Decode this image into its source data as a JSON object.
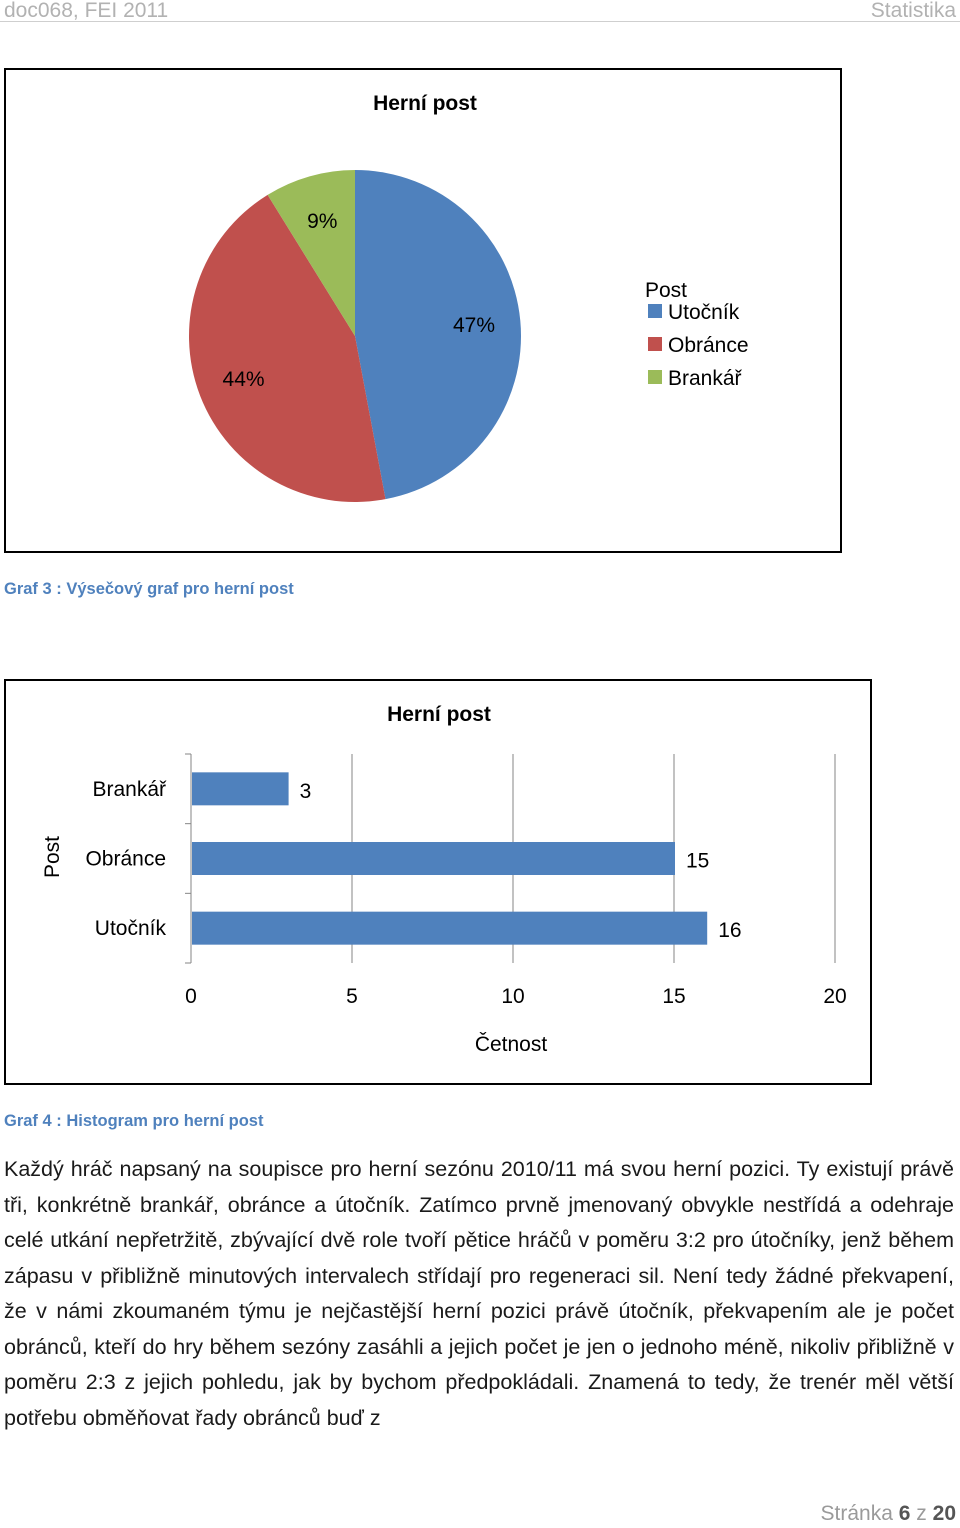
{
  "header": {
    "left": "doc068, FEI 2011",
    "right": "Statistika"
  },
  "chart_data": [
    {
      "type": "pie",
      "title": "Herní post",
      "legend_title": "Post",
      "legend_position": "right",
      "categories": [
        "Utočník",
        "Obránce",
        "Brankář"
      ],
      "values": [
        16,
        15,
        3
      ],
      "percent_labels": [
        "47%",
        "44%",
        "9%"
      ],
      "colors": [
        "#4f81bd",
        "#c0504d",
        "#9bbb59"
      ]
    },
    {
      "type": "bar",
      "orientation": "horizontal",
      "title": "Herní post",
      "xlabel": "Četnost",
      "ylabel": "Post",
      "categories": [
        "Brankář",
        "Obránce",
        "Utočník"
      ],
      "values": [
        3,
        15,
        16
      ],
      "xlim": [
        0,
        20
      ],
      "xticks": [
        "0",
        "5",
        "10",
        "15",
        "20"
      ],
      "grid": "vertical",
      "color": "#4f81bd"
    }
  ],
  "captions": {
    "graf3": "Graf 3 : Výsečový graf pro herní post",
    "graf4": "Graf 4 : Histogram pro herní post"
  },
  "paragraph": "Každý hráč napsaný na soupisce pro herní sezónu 2010/11 má svou herní pozici. Ty existují právě tři, konkrétně brankář, obránce a útočník. Zatímco prvně jmenovaný obvykle nestřídá a odehraje celé utkání nepřetržitě, zbývající dvě role tvoří pětice hráčů v poměru 3:2 pro útočníky, jenž během zápasu v přibližně minutových intervalech střídají pro regeneraci sil. Není tedy žádné překvapení, že v námi zkoumaném týmu je nejčastější herní pozici právě útočník, překvapením ale je  počet obránců, kteří do hry během sezóny zasáhli a jejich počet je jen o jednoho méně, nikoliv přibližně v poměru 2:3 z jejich pohledu, jak by bychom předpokládali. Znamená to tedy, že trenér měl větší potřebu obměňovat řady obránců buď z",
  "footer": {
    "prefix": "Stránka",
    "page": "6",
    "sep": "z",
    "total": "20"
  }
}
